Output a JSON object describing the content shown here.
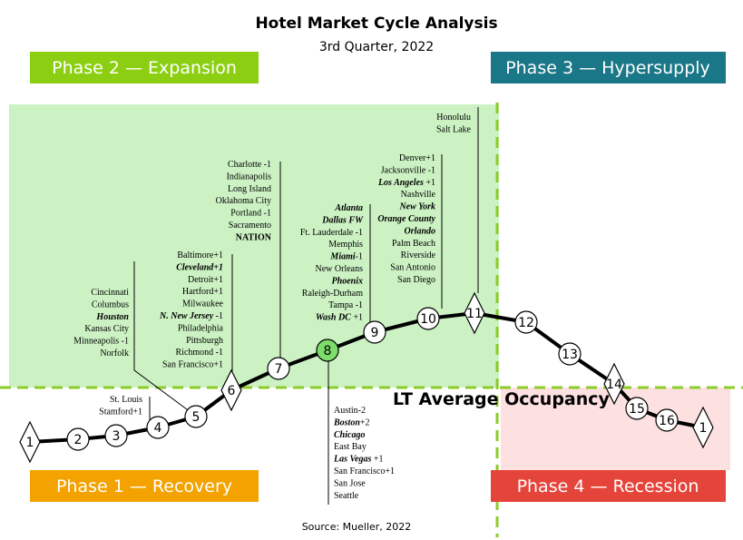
{
  "title": "Hotel Market Cycle Analysis",
  "subtitle": "3rd Quarter, 2022",
  "source": "Source: Mueller, 2022",
  "phases": [
    "Phase 1 — Recovery",
    "Phase 2 — Expansion",
    "Phase 3 — Hypersupply",
    "Phase 4 — Recession"
  ],
  "reference_label": "LT Average Occupancy",
  "nodes": [
    {
      "label": "1",
      "shape": "diamond"
    },
    {
      "label": "2",
      "shape": "circle"
    },
    {
      "label": "3",
      "shape": "circle"
    },
    {
      "label": "4",
      "shape": "circle"
    },
    {
      "label": "5",
      "shape": "circle"
    },
    {
      "label": "6",
      "shape": "diamond"
    },
    {
      "label": "7",
      "shape": "circle"
    },
    {
      "label": "8",
      "shape": "circle",
      "color": "#7ddc6a"
    },
    {
      "label": "9",
      "shape": "circle"
    },
    {
      "label": "10",
      "shape": "circle"
    },
    {
      "label": "11",
      "shape": "diamond"
    },
    {
      "label": "12",
      "shape": "circle"
    },
    {
      "label": "13",
      "shape": "circle"
    },
    {
      "label": "14",
      "shape": "diamond"
    },
    {
      "label": "15",
      "shape": "circle"
    },
    {
      "label": "16",
      "shape": "circle"
    },
    {
      "label": "1",
      "shape": "diamond"
    }
  ],
  "city_groups": [
    {
      "entries": [
        {
          "text": "Cincinnati"
        },
        {
          "text": "Columbus"
        },
        {
          "text": "Houston",
          "style": "bold-italic"
        },
        {
          "text": "Kansas City"
        },
        {
          "text": "Minneapolis -1"
        },
        {
          "text": "Norfolk"
        }
      ]
    },
    {
      "entries": [
        {
          "text": "St. Louis"
        },
        {
          "text": "Stamford+1"
        }
      ]
    },
    {
      "entries": [
        {
          "text": "Baltimore+1"
        },
        {
          "text": "Cleveland+1",
          "style": "bold-italic"
        },
        {
          "text": "Detroit+1"
        },
        {
          "text": "Hartford+1"
        },
        {
          "text": "Milwaukee"
        },
        {
          "text": "N. New Jersey",
          "style": "bold-italic",
          "suffix": " -1"
        },
        {
          "text": "Philadelphia"
        },
        {
          "text": "Pittsburgh"
        },
        {
          "text": "Richmond -1"
        },
        {
          "text": "San Francisco+1"
        }
      ]
    },
    {
      "entries": [
        {
          "text": "Charlotte -1"
        },
        {
          "text": "Indianapolis"
        },
        {
          "text": "Long Island"
        },
        {
          "text": "Oklahoma City"
        },
        {
          "text": "Portland -1"
        },
        {
          "text": "Sacramento"
        },
        {
          "text": "NATION",
          "style": "bold"
        }
      ]
    },
    {
      "entries": [
        {
          "text": "Atlanta",
          "style": "bold-italic"
        },
        {
          "text": "Dallas FW",
          "style": "bold-italic"
        },
        {
          "text": "Ft. Lauderdale -1"
        },
        {
          "text": "Memphis"
        },
        {
          "text": "Miami",
          "style": "bold-italic",
          "suffix": "-1"
        },
        {
          "text": "New Orleans"
        },
        {
          "text": "Phoenix",
          "style": "bold-italic"
        },
        {
          "text": "Raleigh-Durham"
        },
        {
          "text": "Tampa -1"
        },
        {
          "text": "Wash DC",
          "style": "bold-italic",
          "suffix": " +1"
        }
      ]
    },
    {
      "entries": [
        {
          "text": "Denver+1"
        },
        {
          "text": "Jacksonville -1"
        },
        {
          "text": "Los Angeles",
          "style": "bold-italic",
          "suffix": " +1"
        },
        {
          "text": "Nashville"
        },
        {
          "text": "New York",
          "style": "bold-italic"
        },
        {
          "text": "Orange County",
          "style": "bold-italic"
        },
        {
          "text": "Orlando",
          "style": "bold-italic"
        },
        {
          "text": "Palm Beach"
        },
        {
          "text": "Riverside"
        },
        {
          "text": "San Antonio"
        },
        {
          "text": "San Diego"
        }
      ]
    },
    {
      "entries": [
        {
          "text": "Honolulu"
        },
        {
          "text": "Salt Lake"
        }
      ]
    },
    {
      "entries": [
        {
          "text": "Austin-2"
        },
        {
          "text": "Boston",
          "style": "bold-italic",
          "suffix": "+2"
        },
        {
          "text": "Chicago",
          "style": "bold-italic"
        },
        {
          "text": "East Bay"
        },
        {
          "text": "Las Vegas",
          "style": "bold-italic",
          "suffix": " +1"
        },
        {
          "text": "San Francisco+1"
        },
        {
          "text": "San Jose"
        },
        {
          "text": "Seattle"
        }
      ]
    }
  ]
}
